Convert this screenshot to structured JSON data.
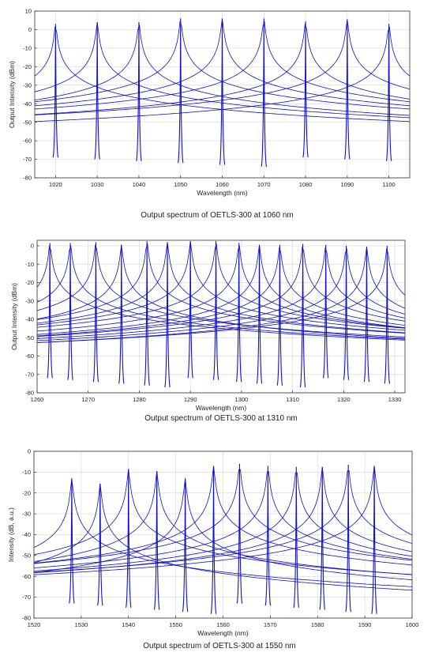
{
  "charts": [
    {
      "caption": "Output spectrum of OETLS-300 at 1060 nm",
      "chart_data": {
        "type": "line",
        "xlabel": "Wavelength (nm)",
        "ylabel": "Output Intensity (dBm)",
        "xlim": [
          1015,
          1105
        ],
        "ylim": [
          -80,
          10
        ],
        "xticks": [
          1020,
          1030,
          1040,
          1050,
          1060,
          1070,
          1080,
          1090,
          1100
        ],
        "yticks": [
          10,
          0,
          -10,
          -20,
          -30,
          -40,
          -50,
          -60,
          -70,
          -80
        ],
        "grid": true,
        "line_color": "#1010c8",
        "noise_floor": [
          -69,
          -70,
          -71,
          -72,
          -73,
          -74
        ],
        "peaks": [
          {
            "x": 1020,
            "y": 3
          },
          {
            "x": 1030,
            "y": 4
          },
          {
            "x": 1040,
            "y": 4
          },
          {
            "x": 1050,
            "y": 6
          },
          {
            "x": 1060,
            "y": 6
          },
          {
            "x": 1070,
            "y": 6
          },
          {
            "x": 1080,
            "y": 4.5
          },
          {
            "x": 1090,
            "y": 5.5
          },
          {
            "x": 1100,
            "y": 3
          }
        ]
      }
    },
    {
      "caption": "Output spectrum of OETLS-300 at 1310 nm",
      "chart_data": {
        "type": "line",
        "xlabel": "Wavelength (nm)",
        "ylabel": "Output Intensity (dBm)",
        "xlim": [
          1260,
          1332
        ],
        "ylim": [
          -80,
          3
        ],
        "xticks": [
          1260,
          1270,
          1280,
          1290,
          1300,
          1310,
          1320,
          1330
        ],
        "yticks": [
          0,
          -10,
          -20,
          -30,
          -40,
          -50,
          -60,
          -70,
          -80
        ],
        "grid": true,
        "line_color": "#1010c8",
        "noise_floor": [
          -72,
          -73,
          -74,
          -75,
          -76,
          -77
        ],
        "peaks": [
          {
            "x": 1262.5,
            "y": 1.5
          },
          {
            "x": 1266.5,
            "y": 1.5
          },
          {
            "x": 1271.5,
            "y": 2
          },
          {
            "x": 1276.5,
            "y": 0.5
          },
          {
            "x": 1281.5,
            "y": 2.5
          },
          {
            "x": 1285.5,
            "y": 2
          },
          {
            "x": 1290,
            "y": 2.5
          },
          {
            "x": 1295,
            "y": 2.5
          },
          {
            "x": 1299.5,
            "y": 1.5
          },
          {
            "x": 1303.5,
            "y": 0.5
          },
          {
            "x": 1307.5,
            "y": 0.5
          },
          {
            "x": 1312,
            "y": 1
          },
          {
            "x": 1316.5,
            "y": 0.5
          },
          {
            "x": 1320.5,
            "y": 0
          },
          {
            "x": 1324.5,
            "y": -0.5
          },
          {
            "x": 1328.5,
            "y": 0
          }
        ]
      }
    },
    {
      "caption": "Output spectrum of OETLS-300 at 1550 nm",
      "chart_data": {
        "type": "line",
        "xlabel": "Wavelength (nm)",
        "ylabel": "Intensity (dB, a.u.)",
        "xlim": [
          1520,
          1600
        ],
        "ylim": [
          -80,
          0
        ],
        "xticks": [
          1520,
          1530,
          1540,
          1550,
          1560,
          1570,
          1580,
          1590,
          1600
        ],
        "yticks": [
          0,
          -10,
          -20,
          -30,
          -40,
          -50,
          -60,
          -70,
          -80
        ],
        "grid": true,
        "line_color": "#1010c8",
        "noise_floor": [
          -73,
          -74,
          -75,
          -76,
          -77,
          -78
        ],
        "peaks": [
          {
            "x": 1528,
            "y": -13
          },
          {
            "x": 1534,
            "y": -15.5
          },
          {
            "x": 1540,
            "y": -8.5
          },
          {
            "x": 1546,
            "y": -9.5
          },
          {
            "x": 1552,
            "y": -13
          },
          {
            "x": 1558,
            "y": -7
          },
          {
            "x": 1563.5,
            "y": -6
          },
          {
            "x": 1569.5,
            "y": -7
          },
          {
            "x": 1575.5,
            "y": -7.5
          },
          {
            "x": 1581,
            "y": -7.5
          },
          {
            "x": 1586.5,
            "y": -6.5
          },
          {
            "x": 1592,
            "y": -7
          }
        ]
      }
    }
  ]
}
